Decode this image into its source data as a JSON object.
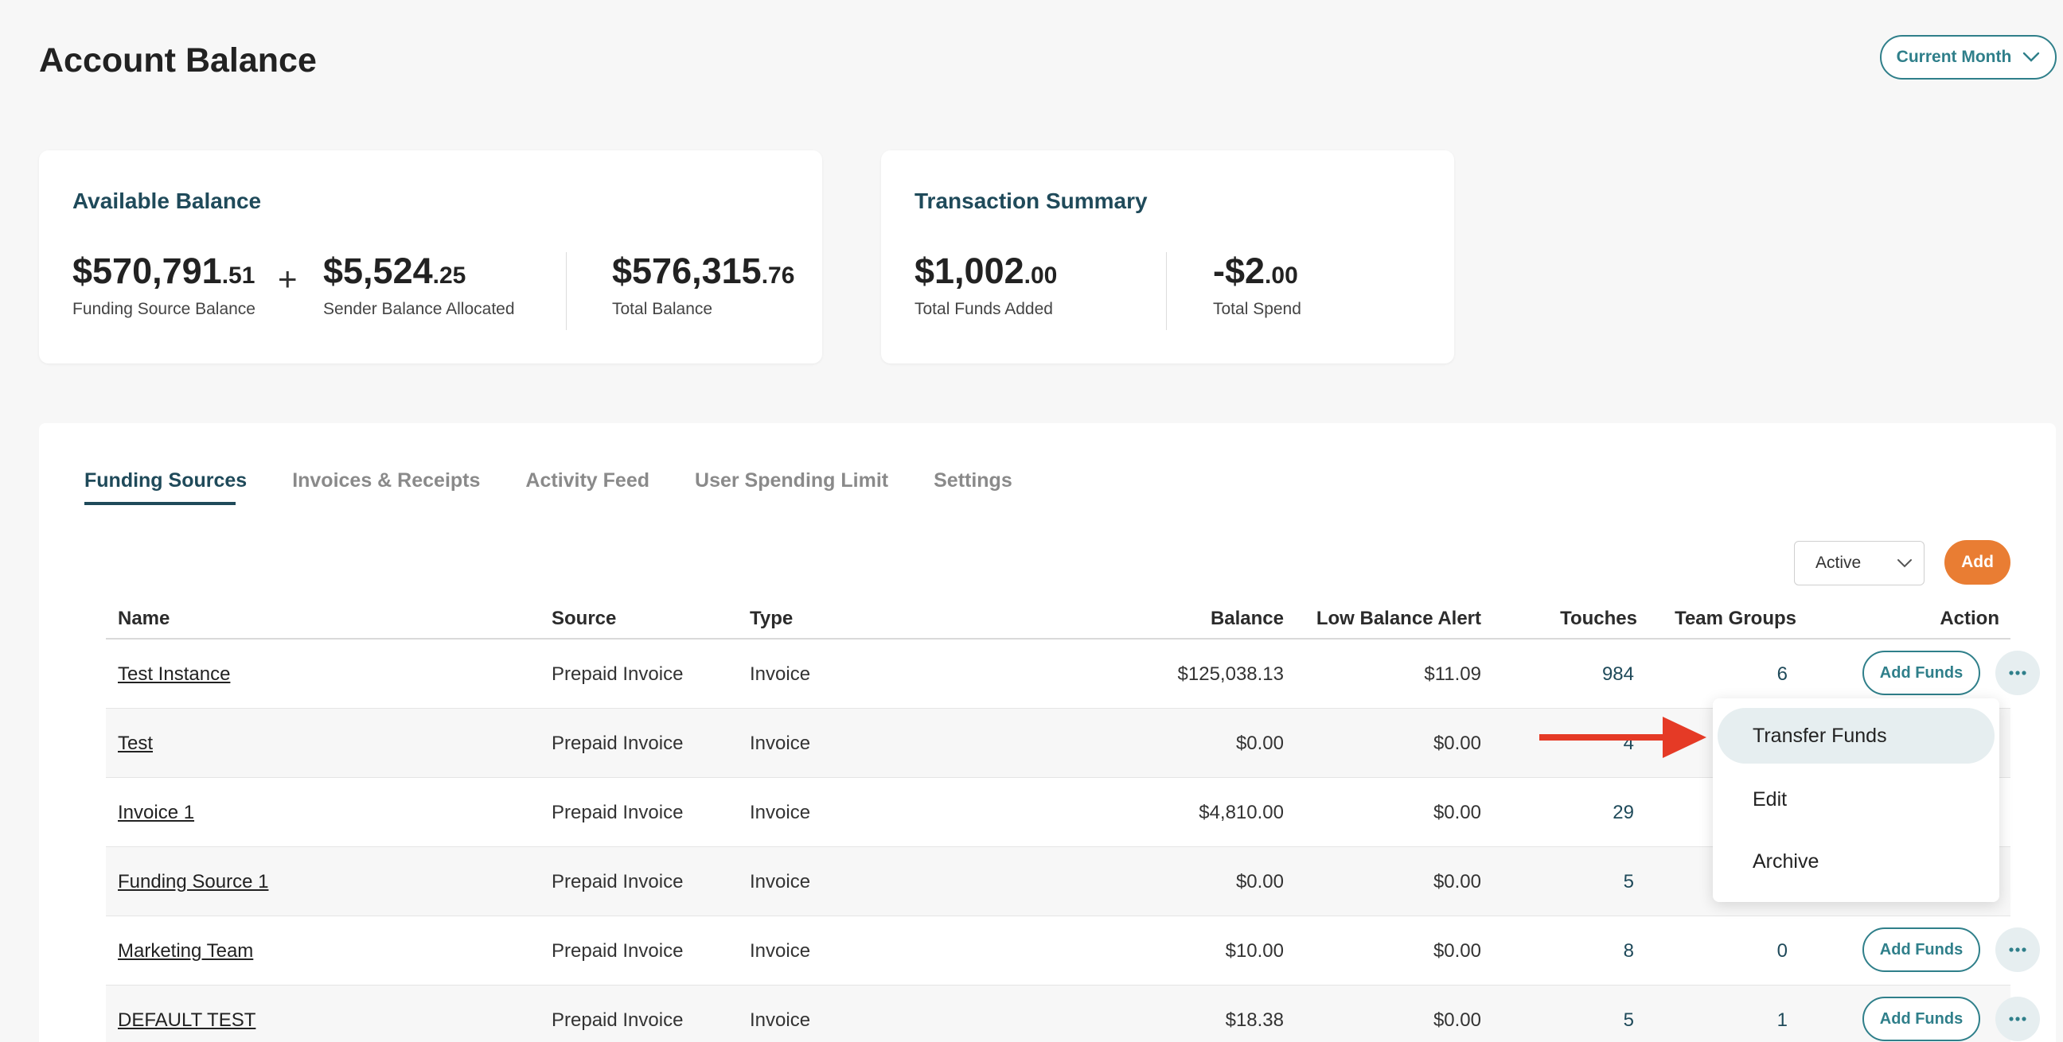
{
  "page": {
    "title": "Account Balance",
    "period": "Current Month"
  },
  "available_balance": {
    "title": "Available Balance",
    "funding": {
      "whole": "$570,791",
      "cents": ".51",
      "label": "Funding Source Balance"
    },
    "plus": "+",
    "sender": {
      "whole": "$5,524",
      "cents": ".25",
      "label": "Sender Balance Allocated"
    },
    "total": {
      "whole": "$576,315",
      "cents": ".76",
      "label": "Total Balance"
    }
  },
  "transaction_summary": {
    "title": "Transaction Summary",
    "added": {
      "whole": "$1,002",
      "cents": ".00",
      "label": "Total Funds Added"
    },
    "spend": {
      "whole": "-$2",
      "cents": ".00",
      "label": "Total Spend"
    }
  },
  "tabs": [
    "Funding Sources",
    "Invoices & Receipts",
    "Activity Feed",
    "User Spending Limit",
    "Settings"
  ],
  "toolbar": {
    "status": "Active",
    "add_label": "Add"
  },
  "table": {
    "headers": {
      "name": "Name",
      "source": "Source",
      "type": "Type",
      "balance": "Balance",
      "low": "Low Balance Alert",
      "touches": "Touches",
      "team": "Team Groups",
      "action": "Action"
    },
    "add_funds_label": "Add Funds",
    "rows": [
      {
        "name": "Test Instance",
        "source": "Prepaid Invoice",
        "type": "Invoice",
        "balance": "$125,038.13",
        "low": "$11.09",
        "touches": "984",
        "team": "6"
      },
      {
        "name": "Test",
        "source": "Prepaid Invoice",
        "type": "Invoice",
        "balance": "$0.00",
        "low": "$0.00",
        "touches": "4",
        "team": ""
      },
      {
        "name": "Invoice 1",
        "source": "Prepaid Invoice",
        "type": "Invoice",
        "balance": "$4,810.00",
        "low": "$0.00",
        "touches": "29",
        "team": ""
      },
      {
        "name": "Funding Source 1",
        "source": "Prepaid Invoice",
        "type": "Invoice",
        "balance": "$0.00",
        "low": "$0.00",
        "touches": "5",
        "team": ""
      },
      {
        "name": "Marketing Team",
        "source": "Prepaid Invoice",
        "type": "Invoice",
        "balance": "$10.00",
        "low": "$0.00",
        "touches": "8",
        "team": "0"
      },
      {
        "name": "DEFAULT TEST",
        "source": "Prepaid Invoice",
        "type": "Invoice",
        "balance": "$18.38",
        "low": "$0.00",
        "touches": "5",
        "team": "1"
      }
    ]
  },
  "menu": {
    "items": [
      "Transfer Funds",
      "Edit",
      "Archive"
    ]
  },
  "icons": {
    "period": "chevron-down-icon",
    "status": "chevron-down-icon",
    "more": "ellipsis-icon",
    "annotation": "arrow-right-icon"
  },
  "colors": {
    "accent": "#2f7f8a",
    "title": "#1f4a5a",
    "add": "#e97d33",
    "arrow": "#e53a26"
  }
}
